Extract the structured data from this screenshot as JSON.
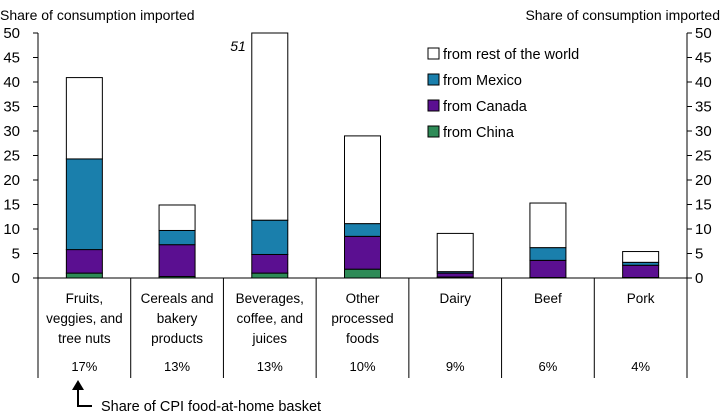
{
  "chart_data": {
    "type": "bar",
    "stacked": true,
    "ylabel_left": "Share of consumption imported",
    "ylabel_right": "Share of consumption imported",
    "ylim": [
      0,
      50
    ],
    "yticks": [
      "0",
      "5",
      "10",
      "15",
      "20",
      "25",
      "30",
      "35",
      "40",
      "45",
      "50"
    ],
    "legend_position": "top-right",
    "categories": [
      "Fruits, veggies, and tree nuts",
      "Cereals and bakery products",
      "Beverages, coffee, and juices",
      "Other processed foods",
      "Dairy",
      "Beef",
      "Pork"
    ],
    "category_lines": [
      [
        "Fruits,",
        "veggies, and",
        "tree nuts"
      ],
      [
        "Cereals and",
        "bakery",
        "products"
      ],
      [
        "Beverages,",
        "coffee, and",
        "juices"
      ],
      [
        "Other",
        "processed",
        "foods"
      ],
      [
        "Dairy"
      ],
      [
        "Beef"
      ],
      [
        "Pork"
      ]
    ],
    "cpi_shares": [
      "17%",
      "13%",
      "13%",
      "10%",
      "9%",
      "6%",
      "4%"
    ],
    "cpi_share_label": "Share of CPI food-at-home basket",
    "series": [
      {
        "name": "from China",
        "color": "#2e8b57",
        "values": [
          1,
          0.3,
          1,
          1.8,
          0.2,
          0.1,
          0.1
        ]
      },
      {
        "name": "from Canada",
        "color": "#5b0f91",
        "values": [
          4.8,
          6.5,
          3.8,
          6.7,
          0.8,
          3.5,
          2.5
        ]
      },
      {
        "name": "from Mexico",
        "color": "#1a7fac",
        "values": [
          18.5,
          2.9,
          7,
          2.6,
          0.3,
          2.6,
          0.6
        ]
      },
      {
        "name": "from rest of the world",
        "color": "#ffffff",
        "values": [
          16.6,
          5.2,
          39.2,
          17.9,
          7.8,
          9.1,
          2.2
        ]
      }
    ],
    "annotations": [
      {
        "category_index": 2,
        "text": "51"
      }
    ]
  }
}
